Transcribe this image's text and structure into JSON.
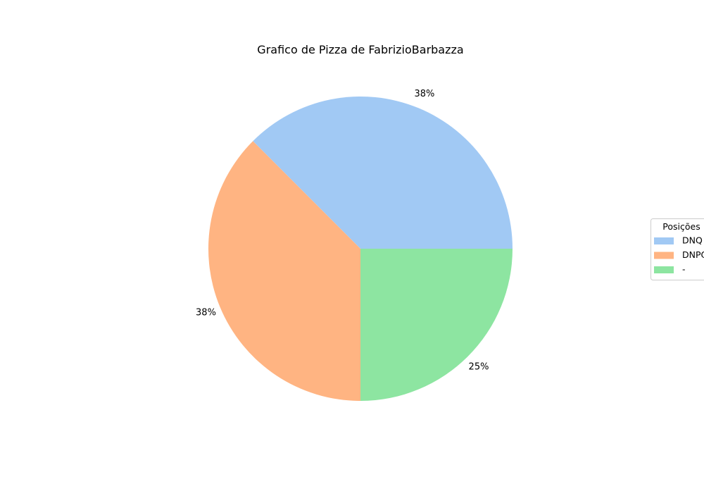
{
  "chart_data": {
    "type": "pie",
    "title": "Grafico de Pizza de FabrizioBarbazza",
    "slices": [
      {
        "label": "DNQ",
        "value": 37.5,
        "pct_label": "38%",
        "color": "#a1c9f4"
      },
      {
        "label": "DNPQ",
        "value": 37.5,
        "pct_label": "38%",
        "color": "#ffb482"
      },
      {
        "label": "-",
        "value": 25,
        "pct_label": "25%",
        "color": "#8de5a1"
      }
    ],
    "start_angle_deg": 0,
    "direction": "counterclockwise",
    "legend": {
      "title": "Posições",
      "placement": "center-right"
    }
  }
}
